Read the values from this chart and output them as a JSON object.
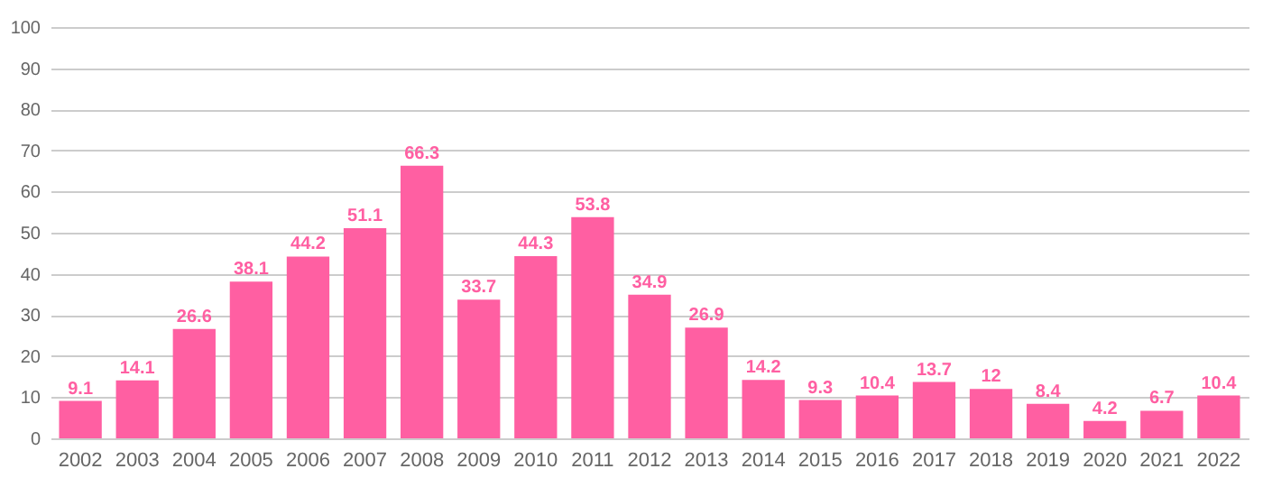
{
  "chart_data": {
    "type": "bar",
    "categories": [
      "2002",
      "2003",
      "2004",
      "2005",
      "2006",
      "2007",
      "2008",
      "2009",
      "2010",
      "2011",
      "2012",
      "2013",
      "2014",
      "2015",
      "2016",
      "2017",
      "2018",
      "2019",
      "2020",
      "2021",
      "2022"
    ],
    "values": [
      9.1,
      14.1,
      26.6,
      38.1,
      44.2,
      51.1,
      66.3,
      33.7,
      44.3,
      53.8,
      34.9,
      26.9,
      14.2,
      9.3,
      10.4,
      13.7,
      12,
      8.4,
      4.2,
      6.7,
      10.4
    ],
    "color": "#ff5fa2",
    "ylim": [
      0,
      100
    ],
    "yticks": [
      0,
      10,
      20,
      30,
      40,
      50,
      60,
      70,
      80,
      90,
      100
    ],
    "grid": "y",
    "data_labels": true
  }
}
